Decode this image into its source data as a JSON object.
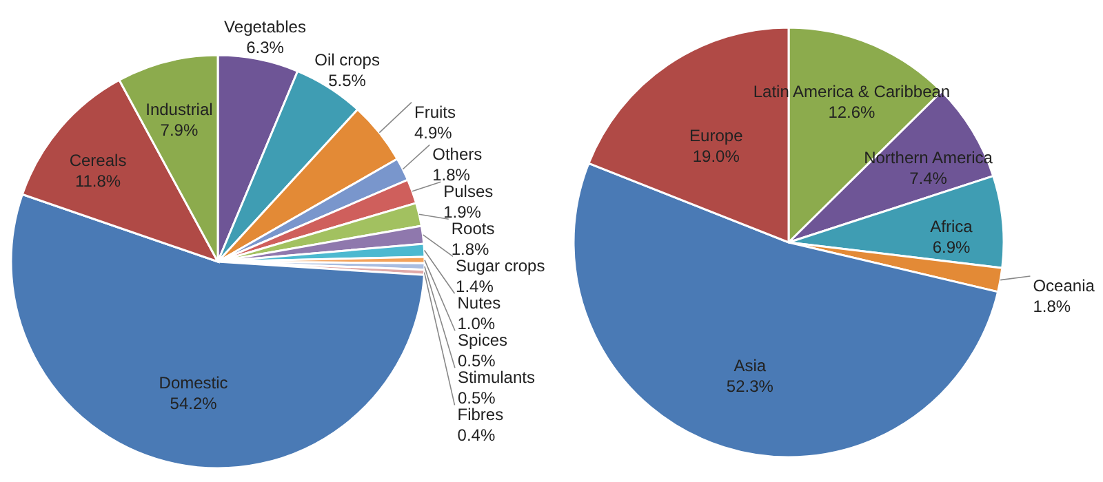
{
  "chart_data": [
    {
      "type": "pie",
      "categories": [
        "Vegetables",
        "Oil crops",
        "Fruits",
        "Others",
        "Pulses",
        "Roots",
        "Sugar crops",
        "Nutes",
        "Spices",
        "Stimulants",
        "Fibres",
        "Domestic",
        "Cereals",
        "Industrial"
      ],
      "values": [
        6.3,
        5.5,
        4.9,
        1.8,
        1.9,
        1.8,
        1.4,
        1.0,
        0.5,
        0.5,
        0.4,
        54.2,
        11.8,
        7.9
      ],
      "value_labels": [
        "6.3%",
        "5.5%",
        "4.9%",
        "1.8%",
        "1.9%",
        "1.8%",
        "1.4%",
        "1.0%",
        "0.5%",
        "0.5%",
        "0.4%",
        "54.2%",
        "11.8%",
        "7.9%"
      ],
      "colors": [
        "#6e5596",
        "#3f9db3",
        "#e38a36",
        "#7996cc",
        "#cf5f5c",
        "#a2c160",
        "#8f78ad",
        "#4cb9d0",
        "#f3a25a",
        "#a9bde0",
        "#e0a9a8",
        "#4a7ab5",
        "#b04a46",
        "#8cab4d"
      ]
    },
    {
      "type": "pie",
      "categories": [
        "Latin America & Caribbean",
        "Northern America",
        "Africa",
        "Oceania",
        "Asia",
        "Europe"
      ],
      "values": [
        12.6,
        7.4,
        6.9,
        1.8,
        52.3,
        19.0
      ],
      "value_labels": [
        "12.6%",
        "7.4%",
        "6.9%",
        "1.8%",
        "52.3%",
        "19.0%"
      ],
      "colors": [
        "#8cab4d",
        "#6e5596",
        "#3f9db3",
        "#e38a36",
        "#4a7ab5",
        "#b04a46"
      ]
    }
  ]
}
